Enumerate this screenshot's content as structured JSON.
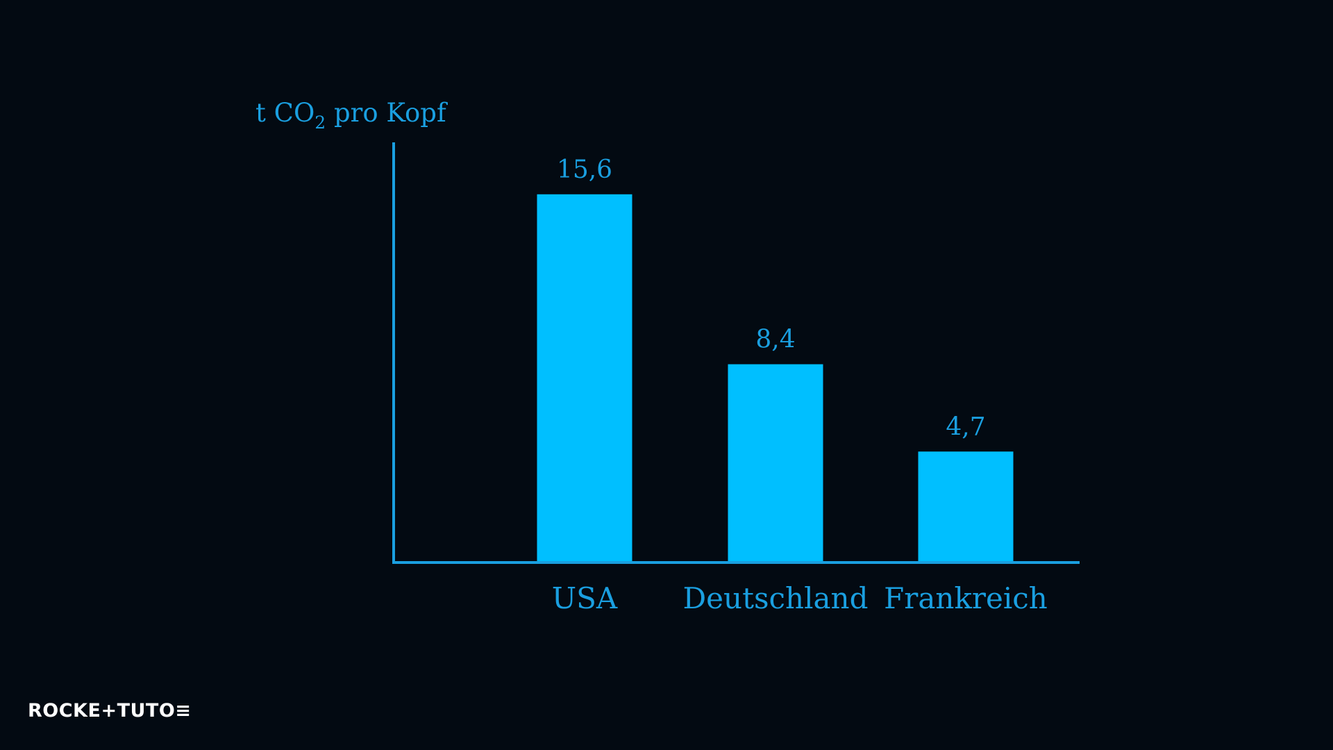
{
  "chart_data": {
    "type": "bar",
    "ylabel_prefix": "t CO",
    "ylabel_sub": "2",
    "ylabel_suffix": " pro Kopf",
    "categories": [
      "USA",
      "Deutschland",
      "Frankreich"
    ],
    "values": [
      15.6,
      8.4,
      4.7
    ],
    "value_labels": [
      "15,6",
      "8,4",
      "4,7"
    ],
    "ylim": [
      0,
      17.8
    ],
    "grid": false,
    "bar_color": "#00bfff",
    "axis_color": "#1a9fe0",
    "text_color": "#1a9fe0"
  },
  "logo": {
    "part1": "ROCKE",
    "plus": "+",
    "part2": "TUTO",
    "mark": "≡"
  }
}
